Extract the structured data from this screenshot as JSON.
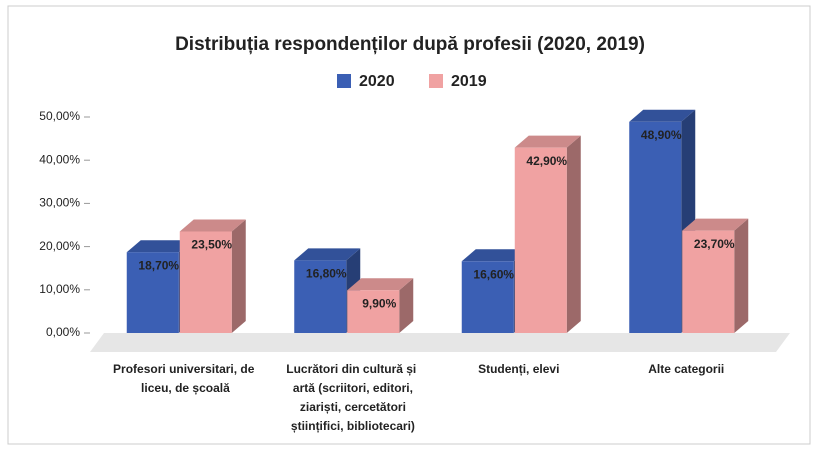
{
  "chart_data": {
    "type": "bar3d",
    "title": "Distribuția respondenților după profesii (2020, 2019)",
    "categories": [
      "Profesori universitari, de liceu, de școală",
      "Lucrători din cultură și artă (scriitori, editori, ziariști, cercetători științifici, bibliotecari)",
      "Studenți, elevi",
      "Alte categorii"
    ],
    "series": [
      {
        "name": "2020",
        "color": "#3b5fb4",
        "values": [
          18.7,
          16.8,
          16.6,
          48.9
        ],
        "value_labels": [
          "18,70%",
          "16,80%",
          "16,60%",
          "48,90%"
        ]
      },
      {
        "name": "2019",
        "color": "#f0a2a2",
        "values": [
          23.5,
          9.9,
          42.9,
          23.7
        ],
        "value_labels": [
          "23,50%",
          "9,90%",
          "42,90%",
          "23,70%"
        ]
      }
    ],
    "ylim": [
      0,
      50
    ],
    "yticks": [
      {
        "value": 0,
        "label": "0,00%"
      },
      {
        "value": 10,
        "label": "10,00%"
      },
      {
        "value": 20,
        "label": "20,00%"
      },
      {
        "value": 30,
        "label": "30,00%"
      },
      {
        "value": 40,
        "label": "40,00%"
      },
      {
        "value": 50,
        "label": "50,00%"
      }
    ],
    "legend": "top"
  }
}
